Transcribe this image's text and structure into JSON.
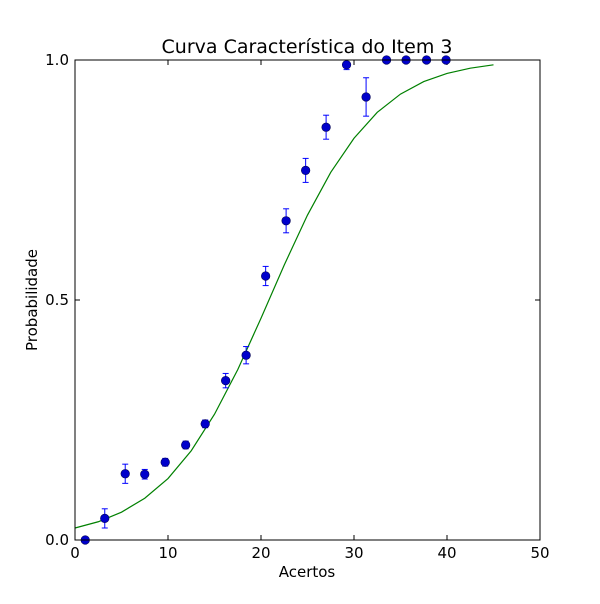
{
  "chart_data": {
    "type": "scatter",
    "title": "Curva Característica do Item 3",
    "xlabel": "Acertos",
    "ylabel": "Probabilidade",
    "xlim": [
      0,
      50
    ],
    "ylim": [
      0.0,
      1.0
    ],
    "xticks": [
      0,
      10,
      20,
      30,
      40,
      50
    ],
    "xtick_labels": [
      "0",
      "10",
      "20",
      "30",
      "40",
      "50"
    ],
    "yticks": [
      0.0,
      0.5,
      1.0
    ],
    "ytick_labels": [
      "0.0",
      "0.5",
      "1.0"
    ],
    "grid": false,
    "legend": "none",
    "colors": {
      "points": "#0000cc",
      "error_bars": "#0000ff",
      "curve": "#008000",
      "frame": "#000000"
    },
    "points": {
      "x": [
        1.1,
        3.2,
        5.4,
        7.5,
        9.7,
        11.9,
        14.0,
        16.2,
        18.4,
        20.5,
        22.7,
        24.8,
        27.0,
        29.2,
        31.3,
        33.5,
        35.6,
        37.8,
        39.9
      ],
      "y": [
        0.0,
        0.045,
        0.138,
        0.137,
        0.162,
        0.198,
        0.242,
        0.332,
        0.385,
        0.55,
        0.665,
        0.77,
        0.86,
        0.99,
        0.923,
        1.0,
        1.0,
        1.0,
        1.0
      ],
      "yerr": [
        0.0,
        0.02,
        0.02,
        0.01,
        0.008,
        0.008,
        0.008,
        0.015,
        0.018,
        0.02,
        0.025,
        0.025,
        0.025,
        0.01,
        0.04,
        0.0,
        0.0,
        0.0,
        0.0
      ]
    },
    "curve": {
      "x": [
        0,
        2.5,
        5,
        7.5,
        10,
        12.5,
        15,
        17.5,
        20,
        22.5,
        25,
        27.5,
        30,
        32.5,
        35,
        37.5,
        40,
        42.5,
        45
      ],
      "y": [
        0.025,
        0.038,
        0.058,
        0.087,
        0.128,
        0.186,
        0.262,
        0.355,
        0.462,
        0.573,
        0.677,
        0.766,
        0.837,
        0.891,
        0.929,
        0.955,
        0.972,
        0.983,
        0.99
      ]
    }
  }
}
